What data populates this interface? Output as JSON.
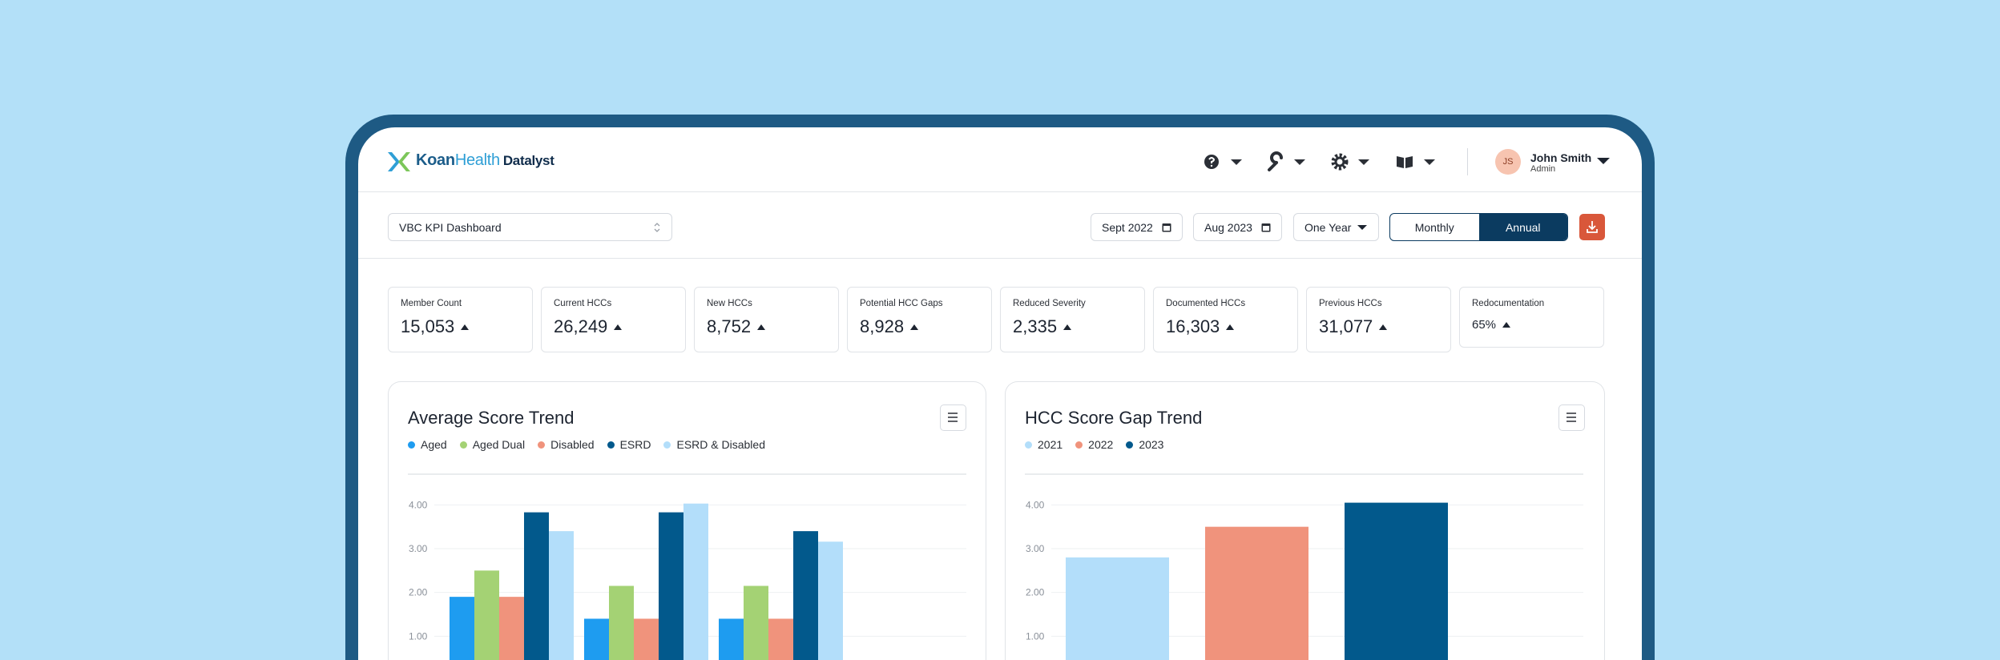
{
  "header": {
    "logo_primary": "Koan",
    "logo_secondary": "Health",
    "logo_product": "Datalyst",
    "user": {
      "initials": "JS",
      "name": "John Smith",
      "role": "Admin"
    }
  },
  "toolbar": {
    "dashboard": "VBC KPI Dashboard",
    "start_date": "Sept 2022",
    "end_date": "Aug 2023",
    "period": "One Year",
    "view_options": [
      "Monthly",
      "Annual"
    ],
    "active_view": 1
  },
  "kpis": [
    {
      "label": "Member Count",
      "value": "15,053"
    },
    {
      "label": "Current HCCs",
      "value": "26,249"
    },
    {
      "label": "New HCCs",
      "value": "8,752"
    },
    {
      "label": "Potential HCC Gaps",
      "value": "8,928"
    },
    {
      "label": "Reduced Severity",
      "value": "2,335"
    },
    {
      "label": "Documented HCCs",
      "value": "16,303"
    },
    {
      "label": "Previous HCCs",
      "value": "31,077"
    },
    {
      "label": "Redocumentation",
      "value": "65%"
    }
  ],
  "chart_data": [
    {
      "type": "bar",
      "title": "Average Score Trend",
      "categories": [
        null,
        null,
        null
      ],
      "series": [
        {
          "name": "Aged",
          "color": "#1e9cf0",
          "values": [
            1.9,
            1.4,
            1.4
          ]
        },
        {
          "name": "Aged Dual",
          "color": "#a4d274",
          "values": [
            2.5,
            2.15,
            2.15
          ]
        },
        {
          "name": "Disabled",
          "color": "#f0937c",
          "values": [
            1.9,
            1.4,
            1.4
          ]
        },
        {
          "name": "ESRD",
          "color": "#02598c",
          "values": [
            3.83,
            3.83,
            3.4
          ]
        },
        {
          "name": "ESRD & Disabled",
          "color": "#b3defa",
          "values": [
            3.4,
            4.03,
            3.16
          ]
        }
      ],
      "ylim": [
        0,
        4.5
      ],
      "yticks": [
        {
          "value": 1,
          "label": "1.00"
        },
        {
          "value": 2,
          "label": "2.00"
        },
        {
          "value": 3,
          "label": "3.00"
        },
        {
          "value": 4,
          "label": "4.00"
        }
      ],
      "grid": true
    },
    {
      "type": "bar",
      "title": "HCC Score Gap Trend",
      "categories": [
        null
      ],
      "series": [
        {
          "name": "2021",
          "color": "#b3defa",
          "values": [
            2.8
          ]
        },
        {
          "name": "2022",
          "color": "#f0937c",
          "values": [
            3.5
          ]
        },
        {
          "name": "2023",
          "color": "#02598c",
          "values": [
            4.05
          ]
        }
      ],
      "ylim": [
        0,
        4.5
      ],
      "yticks": [
        {
          "value": 1,
          "label": "1.00"
        },
        {
          "value": 2,
          "label": "2.00"
        },
        {
          "value": 3,
          "label": "3.00"
        },
        {
          "value": 4,
          "label": "4.00"
        }
      ],
      "grid": true
    }
  ]
}
